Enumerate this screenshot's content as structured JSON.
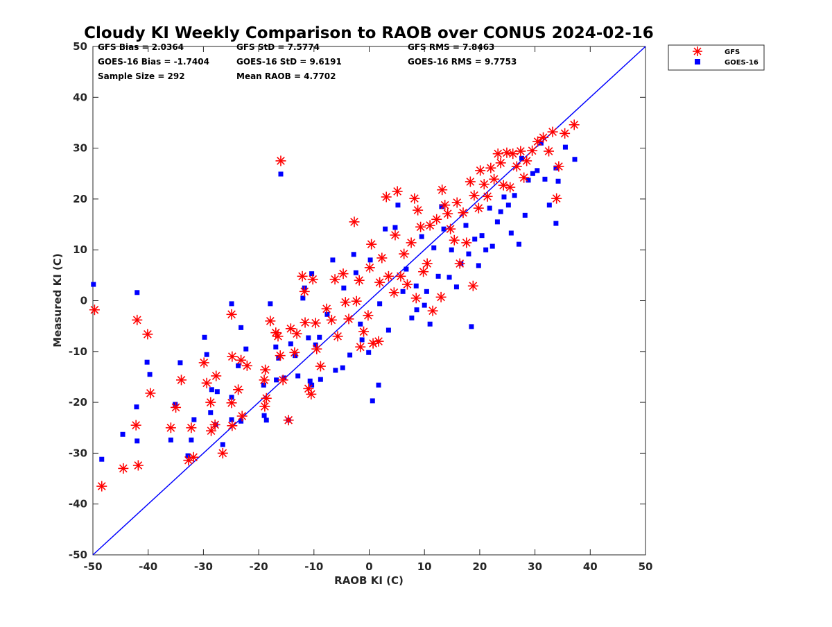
{
  "chart_data": {
    "type": "scatter",
    "title": "Cloudy KI Weekly Comparison to RAOB over CONUS 2024-02-16",
    "xlabel": "RAOB KI (C)",
    "ylabel": "Measured KI (C)",
    "xlim": [
      -50,
      50
    ],
    "ylim": [
      -50,
      50
    ],
    "xticks": [
      -50,
      -40,
      -30,
      -20,
      -10,
      0,
      10,
      20,
      30,
      40,
      50
    ],
    "yticks": [
      -50,
      -40,
      -30,
      -20,
      -10,
      0,
      10,
      20,
      30,
      40,
      50
    ],
    "grid": false,
    "legend_position": "outside-top-right",
    "reference_line": {
      "name": "1:1 line",
      "color": "#0000ff",
      "from": [
        -50,
        -50
      ],
      "to": [
        50,
        50
      ]
    },
    "stats": [
      [
        "GFS Bias = 2.0364",
        "GFS StD = 7.5774",
        "GFS RMS = 7.8463"
      ],
      [
        "GOES-16 Bias = -1.7404",
        "GOES-16 StD = 9.6191",
        "GOES-16 RMS = 9.7753"
      ],
      [
        "Sample Size = 292",
        "Mean RAOB = 4.7702",
        ""
      ]
    ],
    "series": [
      {
        "name": "GFS",
        "marker": "asterisk",
        "color": "#ff0000",
        "points": [
          [
            -49.7,
            -1.8
          ],
          [
            -48.4,
            -36.5
          ],
          [
            -44.5,
            -33
          ],
          [
            -42,
            -3.8
          ],
          [
            -42.2,
            -24.5
          ],
          [
            -41.8,
            -32.4
          ],
          [
            -40.1,
            -6.6
          ],
          [
            -39.6,
            -18.2
          ],
          [
            -35.9,
            -25
          ],
          [
            -35,
            -21
          ],
          [
            -34,
            -15.6
          ],
          [
            -32.2,
            -25
          ],
          [
            -32.7,
            -31.4
          ],
          [
            -31.8,
            -30.8
          ],
          [
            -29.9,
            -12.2
          ],
          [
            -29.4,
            -16.2
          ],
          [
            -28.7,
            -20
          ],
          [
            -28.6,
            -25.6
          ],
          [
            -27.7,
            -14.8
          ],
          [
            -27.9,
            -24.4
          ],
          [
            -26.5,
            -30
          ],
          [
            -24.9,
            -2.7
          ],
          [
            -24.8,
            -11
          ],
          [
            -24.9,
            -20.1
          ],
          [
            -24.8,
            -24.6
          ],
          [
            -23.7,
            -17.5
          ],
          [
            -23.2,
            -11.7
          ],
          [
            -23,
            -22.7
          ],
          [
            -22.1,
            -12.8
          ],
          [
            -19,
            -15.6
          ],
          [
            -18.8,
            -13.6
          ],
          [
            -18.9,
            -20.8
          ],
          [
            -18.6,
            -19.2
          ],
          [
            -17.9,
            -4
          ],
          [
            -16.9,
            -6.3
          ],
          [
            -16.5,
            -7
          ],
          [
            -16,
            27.5
          ],
          [
            -16.1,
            -10.8
          ],
          [
            -15.6,
            -15.6
          ],
          [
            -14.6,
            -23.5
          ],
          [
            -14.2,
            -5.5
          ],
          [
            -13.5,
            -10.2
          ],
          [
            -13.1,
            -6.5
          ],
          [
            -12.1,
            4.8
          ],
          [
            -11.7,
            1.8
          ],
          [
            -11.6,
            -4.3
          ],
          [
            -11,
            -17.3
          ],
          [
            -10.5,
            -18.4
          ],
          [
            -10.2,
            4.2
          ],
          [
            -9.7,
            -4.4
          ],
          [
            -9.5,
            -9.5
          ],
          [
            -8.8,
            -12.9
          ],
          [
            -7.7,
            -1.6
          ],
          [
            -6.8,
            -3.8
          ],
          [
            -6.2,
            4.2
          ],
          [
            -5.7,
            -7
          ],
          [
            -4.7,
            5.3
          ],
          [
            -4.3,
            -0.3
          ],
          [
            -3.7,
            -3.6
          ],
          [
            -2.7,
            15.5
          ],
          [
            -2.3,
            -0.1
          ],
          [
            -1.8,
            4
          ],
          [
            -1.6,
            -9.1
          ],
          [
            -1,
            -6.1
          ],
          [
            -0.2,
            -2.9
          ],
          [
            0.1,
            6.5
          ],
          [
            0.4,
            11.1
          ],
          [
            0.7,
            -8.4
          ],
          [
            1.7,
            -8
          ],
          [
            1.9,
            3.6
          ],
          [
            2.3,
            8.4
          ],
          [
            3.1,
            20.4
          ],
          [
            3.5,
            4.8
          ],
          [
            4.5,
            1.6
          ],
          [
            4.7,
            12.9
          ],
          [
            5.1,
            21.5
          ],
          [
            5.7,
            4.8
          ],
          [
            6.3,
            9.2
          ],
          [
            6.9,
            3.2
          ],
          [
            7.6,
            11.4
          ],
          [
            8.2,
            20.1
          ],
          [
            8.5,
            0.5
          ],
          [
            8.8,
            17.8
          ],
          [
            9.3,
            14.5
          ],
          [
            9.8,
            5.7
          ],
          [
            10.5,
            7.3
          ],
          [
            11,
            14.8
          ],
          [
            11.5,
            -2
          ],
          [
            12.2,
            16
          ],
          [
            13,
            0.7
          ],
          [
            13.2,
            21.8
          ],
          [
            13.7,
            18.8
          ],
          [
            14.2,
            17.1
          ],
          [
            14.7,
            14.1
          ],
          [
            15.4,
            11.9
          ],
          [
            15.9,
            19.3
          ],
          [
            16.4,
            7.3
          ],
          [
            17,
            17.3
          ],
          [
            17.6,
            11.4
          ],
          [
            18.3,
            23.4
          ],
          [
            18.8,
            2.9
          ],
          [
            19,
            20.7
          ],
          [
            19.8,
            18.2
          ],
          [
            20.1,
            25.6
          ],
          [
            20.8,
            22.9
          ],
          [
            21.4,
            20.5
          ],
          [
            22,
            26.1
          ],
          [
            22.6,
            23.9
          ],
          [
            23.3,
            28.9
          ],
          [
            23.8,
            27.1
          ],
          [
            24.3,
            22.7
          ],
          [
            24.9,
            29.1
          ],
          [
            25.5,
            22.3
          ],
          [
            26,
            28.9
          ],
          [
            26.7,
            26.4
          ],
          [
            27.4,
            29.4
          ],
          [
            28,
            24.2
          ],
          [
            28.5,
            27.5
          ],
          [
            29.5,
            29.5
          ],
          [
            30.5,
            31.3
          ],
          [
            31.5,
            32.1
          ],
          [
            32.5,
            29.4
          ],
          [
            33.2,
            33.2
          ],
          [
            33.9,
            20.1
          ],
          [
            34.3,
            26.4
          ],
          [
            35.4,
            32.9
          ],
          [
            37.1,
            34.6
          ]
        ]
      },
      {
        "name": "GOES-16",
        "marker": "square",
        "color": "#0000ff",
        "points": [
          [
            -49.9,
            3.2
          ],
          [
            -48.4,
            -31.2
          ],
          [
            -44.6,
            -26.3
          ],
          [
            -42,
            1.6
          ],
          [
            -42.1,
            -20.9
          ],
          [
            -42,
            -27.6
          ],
          [
            -40.2,
            -12.1
          ],
          [
            -39.7,
            -14.5
          ],
          [
            -35.9,
            -27.4
          ],
          [
            -35.1,
            -20.4
          ],
          [
            -34.2,
            -12.2
          ],
          [
            -32.2,
            -27.4
          ],
          [
            -31.7,
            -23.4
          ],
          [
            -32.8,
            -30.5
          ],
          [
            -29.8,
            -7.2
          ],
          [
            -29.4,
            -10.6
          ],
          [
            -28.5,
            -17.5
          ],
          [
            -28.7,
            -22
          ],
          [
            -27.5,
            -17.9
          ],
          [
            -27.8,
            -24.4
          ],
          [
            -26.5,
            -28.3
          ],
          [
            -24.9,
            -0.6
          ],
          [
            -24.9,
            -19
          ],
          [
            -24.9,
            -23.4
          ],
          [
            -23.2,
            -5.3
          ],
          [
            -23.2,
            -23.7
          ],
          [
            -23.7,
            -12.8
          ],
          [
            -22.3,
            -9.5
          ],
          [
            -19.1,
            -16.6
          ],
          [
            -19,
            -22.6
          ],
          [
            -18.6,
            -23.5
          ],
          [
            -17.9,
            -0.6
          ],
          [
            -16.9,
            -9.1
          ],
          [
            -16.8,
            -15.6
          ],
          [
            -16,
            24.9
          ],
          [
            -16.4,
            -11.3
          ],
          [
            -15.4,
            -15.2
          ],
          [
            -14.6,
            -23.5
          ],
          [
            -14.2,
            -8.5
          ],
          [
            -13.4,
            -10.8
          ],
          [
            -12.9,
            -14.8
          ],
          [
            -12,
            0.5
          ],
          [
            -11.7,
            2.5
          ],
          [
            -11,
            -7.3
          ],
          [
            -10.7,
            -15.8
          ],
          [
            -10.4,
            -16.6
          ],
          [
            -10.4,
            5.3
          ],
          [
            -9.7,
            -8.7
          ],
          [
            -9,
            -7.2
          ],
          [
            -8.8,
            -15.5
          ],
          [
            -7.6,
            -2.7
          ],
          [
            -6.6,
            8
          ],
          [
            -6.1,
            -13.7
          ],
          [
            -4.8,
            -13.2
          ],
          [
            -4.6,
            2.5
          ],
          [
            -3.5,
            -10.7
          ],
          [
            -2.8,
            9.1
          ],
          [
            -2.4,
            5.5
          ],
          [
            -1.6,
            -4.6
          ],
          [
            -1.3,
            -7.7
          ],
          [
            -0.1,
            -10.2
          ],
          [
            0.2,
            8
          ],
          [
            0.6,
            -19.7
          ],
          [
            1.7,
            -16.6
          ],
          [
            1.9,
            -0.6
          ],
          [
            2.9,
            14.1
          ],
          [
            3.5,
            -5.8
          ],
          [
            4.7,
            14.4
          ],
          [
            5.2,
            18.8
          ],
          [
            6.1,
            1.8
          ],
          [
            6.7,
            6.2
          ],
          [
            7.7,
            -3.4
          ],
          [
            8.5,
            2.9
          ],
          [
            8.6,
            -1.8
          ],
          [
            9.5,
            12.6
          ],
          [
            10,
            -0.9
          ],
          [
            10.4,
            1.8
          ],
          [
            11,
            -4.6
          ],
          [
            11.7,
            10.4
          ],
          [
            12.5,
            4.8
          ],
          [
            13.1,
            18.5
          ],
          [
            13.5,
            14.1
          ],
          [
            14.5,
            4.6
          ],
          [
            14.9,
            10
          ],
          [
            15.8,
            2.7
          ],
          [
            16.6,
            7.3
          ],
          [
            17.5,
            14.8
          ],
          [
            18,
            9.2
          ],
          [
            18.5,
            -5.1
          ],
          [
            19.1,
            12.1
          ],
          [
            19.8,
            6.9
          ],
          [
            20.4,
            12.8
          ],
          [
            21.1,
            10
          ],
          [
            21.8,
            18.2
          ],
          [
            22.3,
            10.7
          ],
          [
            23.2,
            15.5
          ],
          [
            23.8,
            17.5
          ],
          [
            24.4,
            20.4
          ],
          [
            25.2,
            18.8
          ],
          [
            25.7,
            13.3
          ],
          [
            26.3,
            20.7
          ],
          [
            27.1,
            11.1
          ],
          [
            27.6,
            28
          ],
          [
            28.2,
            16.8
          ],
          [
            28.8,
            23.7
          ],
          [
            29.6,
            25
          ],
          [
            30.4,
            25.6
          ],
          [
            31.1,
            31
          ],
          [
            31.8,
            23.9
          ],
          [
            32.6,
            18.8
          ],
          [
            33.8,
            26.1
          ],
          [
            33.8,
            15.2
          ],
          [
            34.2,
            23.5
          ],
          [
            35.5,
            30.2
          ],
          [
            37.2,
            27.8
          ]
        ]
      }
    ]
  }
}
